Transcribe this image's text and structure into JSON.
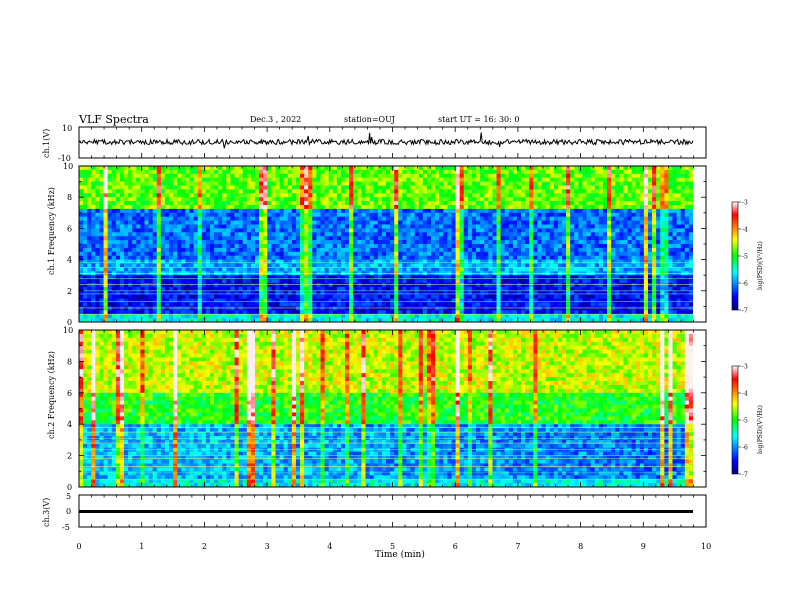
{
  "header": {
    "title": "VLF Spectra",
    "date": "Dec.3 , 2022",
    "station": "station=OUJ",
    "start": "start UT =  16: 30: 0"
  },
  "colorbar": {
    "label": "log(PSD)(V²/Hz)",
    "ticks": [
      "-3",
      "-4",
      "-5",
      "-6",
      "-7"
    ]
  },
  "chart_data": [
    {
      "type": "line",
      "panel": "ch1-waveform",
      "ylabel": "ch.1(V)",
      "ylim": [
        -10,
        10
      ],
      "yticks": [
        "10",
        "-10"
      ],
      "xlim": [
        0,
        10
      ],
      "series": [
        {
          "values_summary": "noise around +/-1 V centered near 0 V with occasional spikes"
        }
      ]
    },
    {
      "type": "heatmap",
      "panel": "ch1-spectrogram",
      "ylabel": "ch.1 Frequency (kHz)",
      "ylim": [
        0,
        10
      ],
      "yticks": [
        "10",
        "8",
        "6",
        "4",
        "2",
        "0"
      ],
      "xlim": [
        0,
        10
      ],
      "zlim": [
        -7,
        -3
      ],
      "colorbar_label": "log(PSD)(V²/Hz)"
    },
    {
      "type": "heatmap",
      "panel": "ch2-spectrogram",
      "ylabel": "ch.2 Frequency (kHz)",
      "ylim": [
        0,
        10
      ],
      "yticks": [
        "10",
        "8",
        "6",
        "4",
        "2",
        "0"
      ],
      "xlim": [
        0,
        10
      ],
      "zlim": [
        -7,
        -3
      ],
      "colorbar_label": "log(PSD)(V²/Hz)"
    },
    {
      "type": "line",
      "panel": "ch3-waveform",
      "ylabel": "ch.3(V)",
      "ylim": [
        -5,
        5
      ],
      "yticks": [
        "5",
        "0",
        "-5"
      ],
      "xlim": [
        0,
        10
      ],
      "xlabel": "Time (min)",
      "xticks": [
        "0",
        "1",
        "2",
        "3",
        "4",
        "5",
        "6",
        "7",
        "8",
        "9",
        "10"
      ],
      "series": [
        {
          "values_summary": "nearly constant level around -1 V"
        }
      ]
    }
  ]
}
